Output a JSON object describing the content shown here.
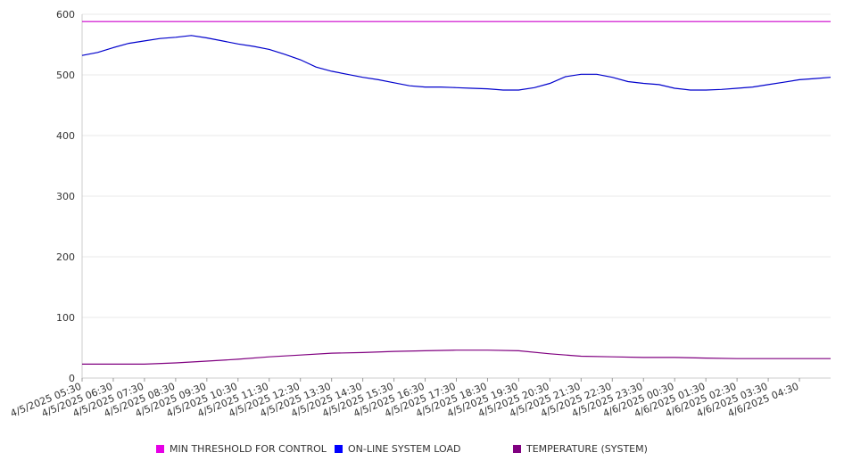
{
  "chart_data": {
    "type": "line",
    "ylim": [
      0,
      600
    ],
    "yticks": [
      "0",
      "100",
      "200",
      "300",
      "400",
      "500",
      "600"
    ],
    "x_tick_labels": [
      "4/5/2025 05:30",
      "4/5/2025 06:30",
      "4/5/2025 07:30",
      "4/5/2025 08:30",
      "4/5/2025 09:30",
      "4/5/2025 10:30",
      "4/5/2025 11:30",
      "4/5/2025 12:30",
      "4/5/2025 13:30",
      "4/5/2025 14:30",
      "4/5/2025 15:30",
      "4/5/2025 16:30",
      "4/5/2025 17:30",
      "4/5/2025 18:30",
      "4/5/2025 19:30",
      "4/5/2025 20:30",
      "4/5/2025 21:30",
      "4/5/2025 22:30",
      "4/5/2025 23:30",
      "4/6/2025 00:30",
      "4/6/2025 01:30",
      "4/6/2025 02:30",
      "4/6/2025 03:30",
      "4/6/2025 04:30"
    ],
    "grid": "horizontal",
    "legend_position": "bottom",
    "series": [
      {
        "name": "MIN THRESHOLD FOR CONTROL",
        "color": "#cc00cc",
        "x": [
          "4/5/2025 05:30",
          "4/6/2025 05:30"
        ],
        "values": [
          588,
          588
        ]
      },
      {
        "name": "ON-LINE SYSTEM LOAD",
        "color": "#0000cc",
        "x": [
          "4/5/2025 05:30",
          "4/5/2025 06:00",
          "4/5/2025 06:30",
          "4/5/2025 07:00",
          "4/5/2025 07:30",
          "4/5/2025 08:00",
          "4/5/2025 08:30",
          "4/5/2025 09:00",
          "4/5/2025 09:30",
          "4/5/2025 10:00",
          "4/5/2025 10:30",
          "4/5/2025 11:00",
          "4/5/2025 11:30",
          "4/5/2025 12:00",
          "4/5/2025 12:30",
          "4/5/2025 13:00",
          "4/5/2025 13:30",
          "4/5/2025 14:00",
          "4/5/2025 14:30",
          "4/5/2025 15:00",
          "4/5/2025 15:30",
          "4/5/2025 16:00",
          "4/5/2025 16:30",
          "4/5/2025 17:00",
          "4/5/2025 17:30",
          "4/5/2025 18:00",
          "4/5/2025 18:30",
          "4/5/2025 19:00",
          "4/5/2025 19:30",
          "4/5/2025 20:00",
          "4/5/2025 20:30",
          "4/5/2025 21:00",
          "4/5/2025 21:30",
          "4/5/2025 22:00",
          "4/5/2025 22:30",
          "4/5/2025 23:00",
          "4/5/2025 23:30",
          "4/6/2025 00:00",
          "4/6/2025 00:30",
          "4/6/2025 01:00",
          "4/6/2025 01:30",
          "4/6/2025 02:00",
          "4/6/2025 02:30",
          "4/6/2025 03:00",
          "4/6/2025 03:30",
          "4/6/2025 04:00",
          "4/6/2025 04:30",
          "4/6/2025 05:00",
          "4/6/2025 05:30"
        ],
        "values": [
          532,
          537,
          545,
          552,
          556,
          560,
          562,
          565,
          561,
          556,
          551,
          547,
          542,
          534,
          525,
          513,
          506,
          501,
          496,
          492,
          487,
          482,
          480,
          480,
          479,
          478,
          477,
          475,
          475,
          479,
          486,
          497,
          501,
          501,
          496,
          489,
          486,
          484,
          478,
          475,
          475,
          476,
          478,
          480,
          484,
          488,
          492,
          494,
          496
        ]
      },
      {
        "name": "TEMPERATURE (SYSTEM)",
        "color": "#800080",
        "x": [
          "4/5/2025 05:30",
          "4/5/2025 06:30",
          "4/5/2025 07:30",
          "4/5/2025 08:30",
          "4/5/2025 09:30",
          "4/5/2025 10:30",
          "4/5/2025 11:30",
          "4/5/2025 12:30",
          "4/5/2025 13:30",
          "4/5/2025 14:30",
          "4/5/2025 15:30",
          "4/5/2025 16:30",
          "4/5/2025 17:30",
          "4/5/2025 18:30",
          "4/5/2025 19:30",
          "4/5/2025 20:30",
          "4/5/2025 21:30",
          "4/5/2025 22:30",
          "4/5/2025 23:30",
          "4/6/2025 00:30",
          "4/6/2025 01:30",
          "4/6/2025 02:30",
          "4/6/2025 03:30",
          "4/6/2025 04:30",
          "4/6/2025 05:30"
        ],
        "values": [
          23,
          23,
          23,
          25,
          28,
          31,
          35,
          38,
          41,
          42,
          44,
          45,
          46,
          46,
          45,
          40,
          36,
          35,
          34,
          34,
          33,
          32,
          32,
          32,
          32
        ]
      }
    ]
  }
}
